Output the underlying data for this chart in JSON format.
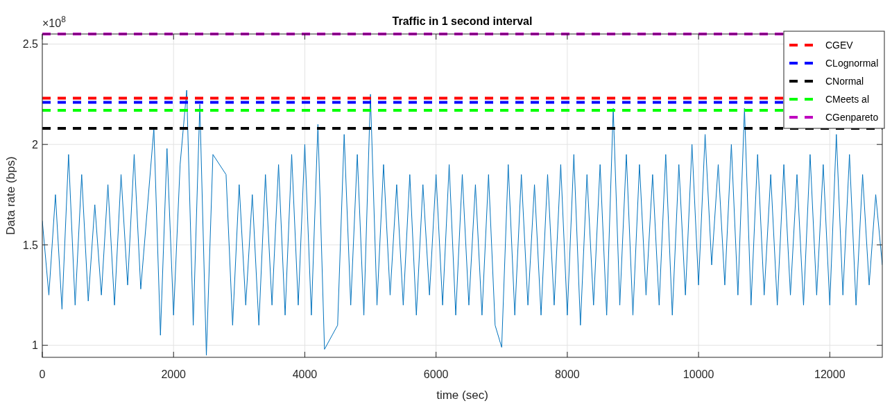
{
  "chart_data": {
    "type": "line",
    "title": "Traffic in 1 second interval",
    "xlabel": "time (sec)",
    "ylabel": "Data rate (bps)",
    "annotations": [
      "×10$^{8}$"
    ],
    "x": [
      0,
      100,
      200,
      300,
      400,
      500,
      600,
      700,
      800,
      900,
      1000,
      1100,
      1200,
      1300,
      1400,
      1500,
      1600,
      1700,
      1800,
      1900,
      2000,
      2100,
      2200,
      2300,
      2400,
      2500,
      2600,
      2700,
      2800,
      2900,
      3000,
      3100,
      3200,
      3300,
      3400,
      3500,
      3600,
      3700,
      3800,
      3900,
      4000,
      4100,
      4200,
      4300,
      4400,
      4500,
      4600,
      4700,
      4800,
      4900,
      5000,
      5100,
      5200,
      5300,
      5400,
      5500,
      5600,
      5700,
      5800,
      5900,
      6000,
      6100,
      6200,
      6300,
      6400,
      6500,
      6600,
      6700,
      6800,
      6900,
      7000,
      7100,
      7200,
      7300,
      7400,
      7500,
      7600,
      7700,
      7800,
      7900,
      8000,
      8100,
      8200,
      8300,
      8400,
      8500,
      8600,
      8700,
      8800,
      8900,
      9000,
      9100,
      9200,
      9300,
      9400,
      9500,
      9600,
      9700,
      9800,
      9900,
      10000,
      10100,
      10200,
      10300,
      10400,
      10500,
      10600,
      10700,
      10800,
      10900,
      11000,
      11100,
      11200,
      11300,
      11400,
      11500,
      11600,
      11700,
      11800,
      11900,
      12000,
      12100,
      12200,
      12300,
      12400,
      12500,
      12600,
      12700,
      12800
    ],
    "series": [
      {
        "color": "#0072bd",
        "values": [
          1.62,
          1.25,
          1.75,
          1.18,
          1.95,
          1.2,
          1.85,
          1.22,
          1.7,
          1.25,
          1.8,
          1.2,
          1.85,
          1.3,
          1.95,
          1.28,
          null,
          2.08,
          1.05,
          1.98,
          1.15,
          1.9,
          2.27,
          1.1,
          2.2,
          0.95,
          1.95,
          null,
          1.85,
          1.1,
          1.8,
          1.2,
          1.75,
          1.1,
          1.85,
          1.2,
          1.9,
          1.15,
          1.95,
          1.2,
          2.0,
          1.15,
          2.1,
          0.98,
          null,
          1.1,
          2.05,
          1.2,
          1.95,
          1.15,
          2.25,
          1.2,
          1.9,
          1.25,
          1.8,
          1.2,
          1.85,
          1.15,
          1.8,
          1.25,
          1.85,
          1.2,
          1.9,
          1.15,
          1.85,
          1.2,
          1.8,
          1.15,
          1.85,
          1.1,
          0.99,
          1.9,
          1.15,
          1.85,
          1.2,
          1.8,
          1.15,
          1.85,
          1.2,
          1.9,
          1.15,
          1.95,
          1.1,
          1.85,
          1.2,
          1.9,
          1.15,
          2.18,
          1.2,
          1.95,
          1.15,
          1.9,
          1.25,
          1.85,
          1.2,
          1.95,
          1.15,
          1.9,
          1.25,
          2.0,
          1.3,
          2.05,
          1.4,
          1.9,
          1.3,
          2.0,
          1.25,
          2.18,
          1.2,
          1.95,
          1.25,
          1.85,
          1.2,
          1.9,
          1.25,
          1.85,
          1.2,
          1.95,
          1.25,
          1.9,
          1.2,
          2.05,
          1.25,
          1.95,
          1.2,
          1.85,
          1.3,
          1.75,
          1.4
        ]
      }
    ],
    "xlim": [
      0,
      12800
    ],
    "xticks": [
      0,
      2000,
      4000,
      6000,
      8000,
      10000,
      12000
    ],
    "ylim": [
      0.94,
      2.55
    ],
    "yticks": [
      1,
      1.5,
      2,
      2.5
    ],
    "grid": true,
    "legend": "top right",
    "ref_lines": [
      {
        "axis": "y",
        "value": 2.23,
        "label": "CGEV",
        "color": "#ff0000",
        "line_style": "dashed"
      },
      {
        "axis": "y",
        "value": 2.21,
        "label": "CLognormal",
        "color": "#0000ff",
        "line_style": "dashed"
      },
      {
        "axis": "y",
        "value": 2.08,
        "label": "CNormal",
        "color": "#000000",
        "line_style": "dashed"
      },
      {
        "axis": "y",
        "value": 2.17,
        "label": "CMeets al",
        "color": "#00ff00",
        "line_style": "dashed"
      },
      {
        "axis": "y",
        "value": 2.55,
        "label": "CGenpareto",
        "color": "#bf00bf",
        "line_style": "dashed"
      }
    ]
  }
}
